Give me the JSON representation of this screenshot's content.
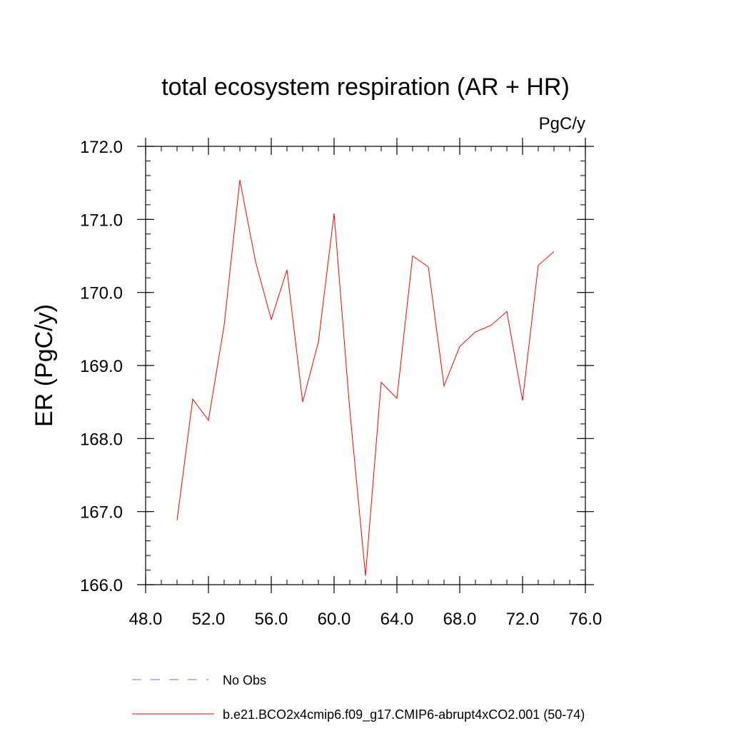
{
  "chart_data": {
    "type": "line",
    "title": "total ecosystem respiration (AR + HR)",
    "units": "PgC/y",
    "xlabel": "",
    "ylabel": "ER  (PgC/y)",
    "xlim": [
      48.0,
      76.0
    ],
    "ylim": [
      166.0,
      172.0
    ],
    "x_ticks": [
      48.0,
      52.0,
      56.0,
      60.0,
      64.0,
      68.0,
      72.0,
      76.0
    ],
    "x_tick_labels": [
      "48.0",
      "52.0",
      "56.0",
      "60.0",
      "64.0",
      "68.0",
      "72.0",
      "76.0"
    ],
    "y_ticks": [
      166.0,
      167.0,
      168.0,
      169.0,
      170.0,
      171.0,
      172.0
    ],
    "y_tick_labels": [
      "166.0",
      "167.0",
      "168.0",
      "169.0",
      "170.0",
      "171.0",
      "172.0"
    ],
    "grid": false,
    "legend_position": "bottom",
    "series": [
      {
        "name": "b.e21.BCO2x4cmip6.f09_g17.CMIP6-abrupt4xCO2.001 (50-74)",
        "color": "#ff0000",
        "style": "solid",
        "x": [
          50,
          51,
          52,
          53,
          54,
          55,
          56,
          57,
          58,
          59,
          60,
          61,
          62,
          63,
          64,
          65,
          66,
          67,
          68,
          69,
          70,
          71,
          72,
          73,
          74
        ],
        "values": [
          166.88,
          168.54,
          168.25,
          169.55,
          171.54,
          170.42,
          169.63,
          170.31,
          168.5,
          169.32,
          171.08,
          168.39,
          166.12,
          168.77,
          168.55,
          170.5,
          170.35,
          168.72,
          169.26,
          169.46,
          169.55,
          169.74,
          168.52,
          170.37,
          170.56
        ]
      }
    ],
    "legend": [
      {
        "label": "No Obs",
        "color": "#7b68ee",
        "style": "dashed"
      },
      {
        "label": "b.e21.BCO2x4cmip6.f09_g17.CMIP6-abrupt4xCO2.001 (50-74)",
        "color": "#ff0000",
        "style": "solid"
      }
    ]
  }
}
